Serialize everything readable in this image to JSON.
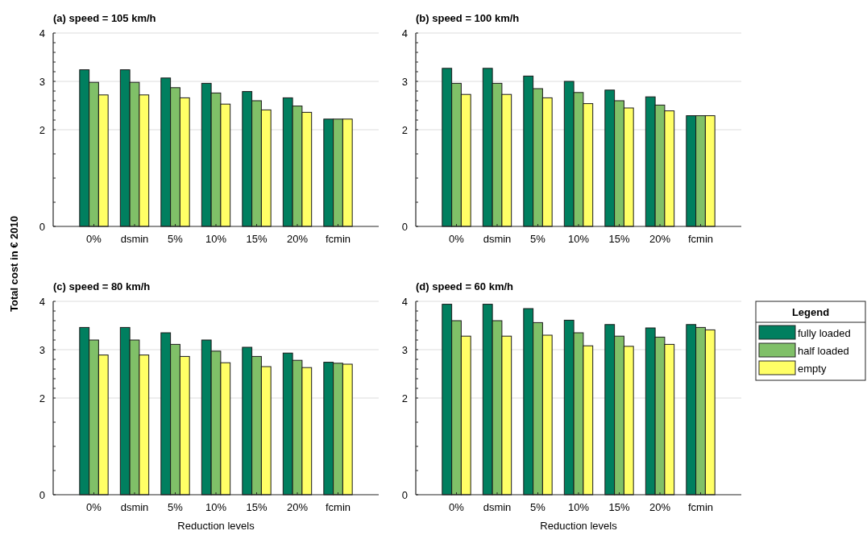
{
  "chart_data": [
    {
      "type": "bar",
      "title": "(a) speed = 105 km/h",
      "ylabel": "Total cost in € 2010",
      "categories": [
        "0%",
        "dsmin",
        "5%",
        "10%",
        "15%",
        "20%",
        "fcmin"
      ],
      "series": [
        {
          "color": "#007f5f",
          "values": [
            3.24,
            3.24,
            3.07,
            2.96,
            2.79,
            2.66,
            2.22
          ]
        },
        {
          "color": "#80c068",
          "values": [
            2.98,
            2.98,
            2.87,
            2.76,
            2.6,
            2.49,
            2.22
          ]
        },
        {
          "color": "#ffff66",
          "values": [
            2.72,
            2.72,
            2.66,
            2.53,
            2.41,
            2.36,
            2.22
          ]
        }
      ],
      "ylim": [
        0,
        4
      ],
      "yticks": [
        0,
        {
          "value": 0.5,
          "label": null
        },
        {
          "value": 1,
          "label": null
        },
        {
          "value": 1.5,
          "label": null
        },
        2,
        {
          "value": 2.2,
          "label": null
        },
        {
          "value": 2.4,
          "label": null
        },
        {
          "value": 2.6,
          "label": null
        },
        {
          "value": 2.8,
          "label": null
        },
        3,
        {
          "value": 3.2,
          "label": null
        },
        {
          "value": 3.4,
          "label": null
        },
        {
          "value": 3.6,
          "label": null
        },
        {
          "value": 3.8,
          "label": null
        },
        4
      ],
      "grid": "y",
      "legend": false
    },
    {
      "type": "bar",
      "title": "(b) speed = 100 km/h",
      "categories": [
        "0%",
        "dsmin",
        "5%",
        "10%",
        "15%",
        "20%",
        "fcmin"
      ],
      "series": [
        {
          "color": "#007f5f",
          "values": [
            3.27,
            3.27,
            3.11,
            3.0,
            2.82,
            2.68,
            2.29
          ]
        },
        {
          "color": "#80c068",
          "values": [
            2.96,
            2.96,
            2.85,
            2.77,
            2.6,
            2.51,
            2.29
          ]
        },
        {
          "color": "#ffff66",
          "values": [
            2.73,
            2.73,
            2.66,
            2.54,
            2.45,
            2.39,
            2.29
          ]
        }
      ],
      "ylim": [
        0,
        4
      ],
      "yticks": [
        0,
        {
          "value": 0.5,
          "label": null
        },
        {
          "value": 1,
          "label": null
        },
        {
          "value": 1.5,
          "label": null
        },
        2,
        {
          "value": 2.2,
          "label": null
        },
        {
          "value": 2.4,
          "label": null
        },
        {
          "value": 2.6,
          "label": null
        },
        {
          "value": 2.8,
          "label": null
        },
        3,
        {
          "value": 3.2,
          "label": null
        },
        {
          "value": 3.4,
          "label": null
        },
        {
          "value": 3.6,
          "label": null
        },
        {
          "value": 3.8,
          "label": null
        },
        4
      ],
      "grid": "y",
      "legend": false
    },
    {
      "type": "bar",
      "title": "(c) speed = 80 km/h",
      "xlabel": "Reduction levels",
      "categories": [
        "0%",
        "dsmin",
        "5%",
        "10%",
        "15%",
        "20%",
        "fcmin"
      ],
      "series": [
        {
          "color": "#007f5f",
          "values": [
            3.46,
            3.46,
            3.35,
            3.2,
            3.05,
            2.93,
            2.74
          ]
        },
        {
          "color": "#80c068",
          "values": [
            3.2,
            3.2,
            3.11,
            2.97,
            2.86,
            2.78,
            2.72
          ]
        },
        {
          "color": "#ffff66",
          "values": [
            2.89,
            2.89,
            2.86,
            2.73,
            2.65,
            2.63,
            2.7
          ]
        }
      ],
      "ylim": [
        0,
        4
      ],
      "yticks": [
        0,
        {
          "value": 0.5,
          "label": null
        },
        {
          "value": 1,
          "label": null
        },
        {
          "value": 1.5,
          "label": null
        },
        2,
        {
          "value": 2.2,
          "label": null
        },
        {
          "value": 2.4,
          "label": null
        },
        {
          "value": 2.6,
          "label": null
        },
        {
          "value": 2.8,
          "label": null
        },
        3,
        {
          "value": 3.2,
          "label": null
        },
        {
          "value": 3.4,
          "label": null
        },
        {
          "value": 3.6,
          "label": null
        },
        {
          "value": 3.8,
          "label": null
        },
        4
      ],
      "grid": "y",
      "legend": false
    },
    {
      "type": "bar",
      "title": "(d) speed = 60 km/h",
      "xlabel": "Reduction levels",
      "legend_title": "Legend",
      "categories": [
        "0%",
        "dsmin",
        "5%",
        "10%",
        "15%",
        "20%",
        "fcmin"
      ],
      "series": [
        {
          "name": "fully loaded",
          "color": "#007f5f",
          "values": [
            3.94,
            3.94,
            3.85,
            3.61,
            3.52,
            3.45,
            3.52
          ]
        },
        {
          "name": "half loaded",
          "color": "#80c068",
          "values": [
            3.6,
            3.6,
            3.56,
            3.35,
            3.28,
            3.26,
            3.46
          ]
        },
        {
          "name": "empty",
          "color": "#ffff66",
          "values": [
            3.28,
            3.28,
            3.3,
            3.08,
            3.07,
            3.11,
            3.41
          ]
        }
      ],
      "ylim": [
        0,
        4
      ],
      "yticks": [
        0,
        {
          "value": 0.5,
          "label": null
        },
        {
          "value": 1,
          "label": null
        },
        {
          "value": 1.5,
          "label": null
        },
        2,
        {
          "value": 2.2,
          "label": null
        },
        {
          "value": 2.4,
          "label": null
        },
        {
          "value": 2.6,
          "label": null
        },
        {
          "value": 2.8,
          "label": null
        },
        3,
        {
          "value": 3.2,
          "label": null
        },
        {
          "value": 3.4,
          "label": null
        },
        {
          "value": 3.6,
          "label": null
        },
        {
          "value": 3.8,
          "label": null
        },
        4
      ],
      "grid": "y",
      "legend": "right"
    }
  ]
}
